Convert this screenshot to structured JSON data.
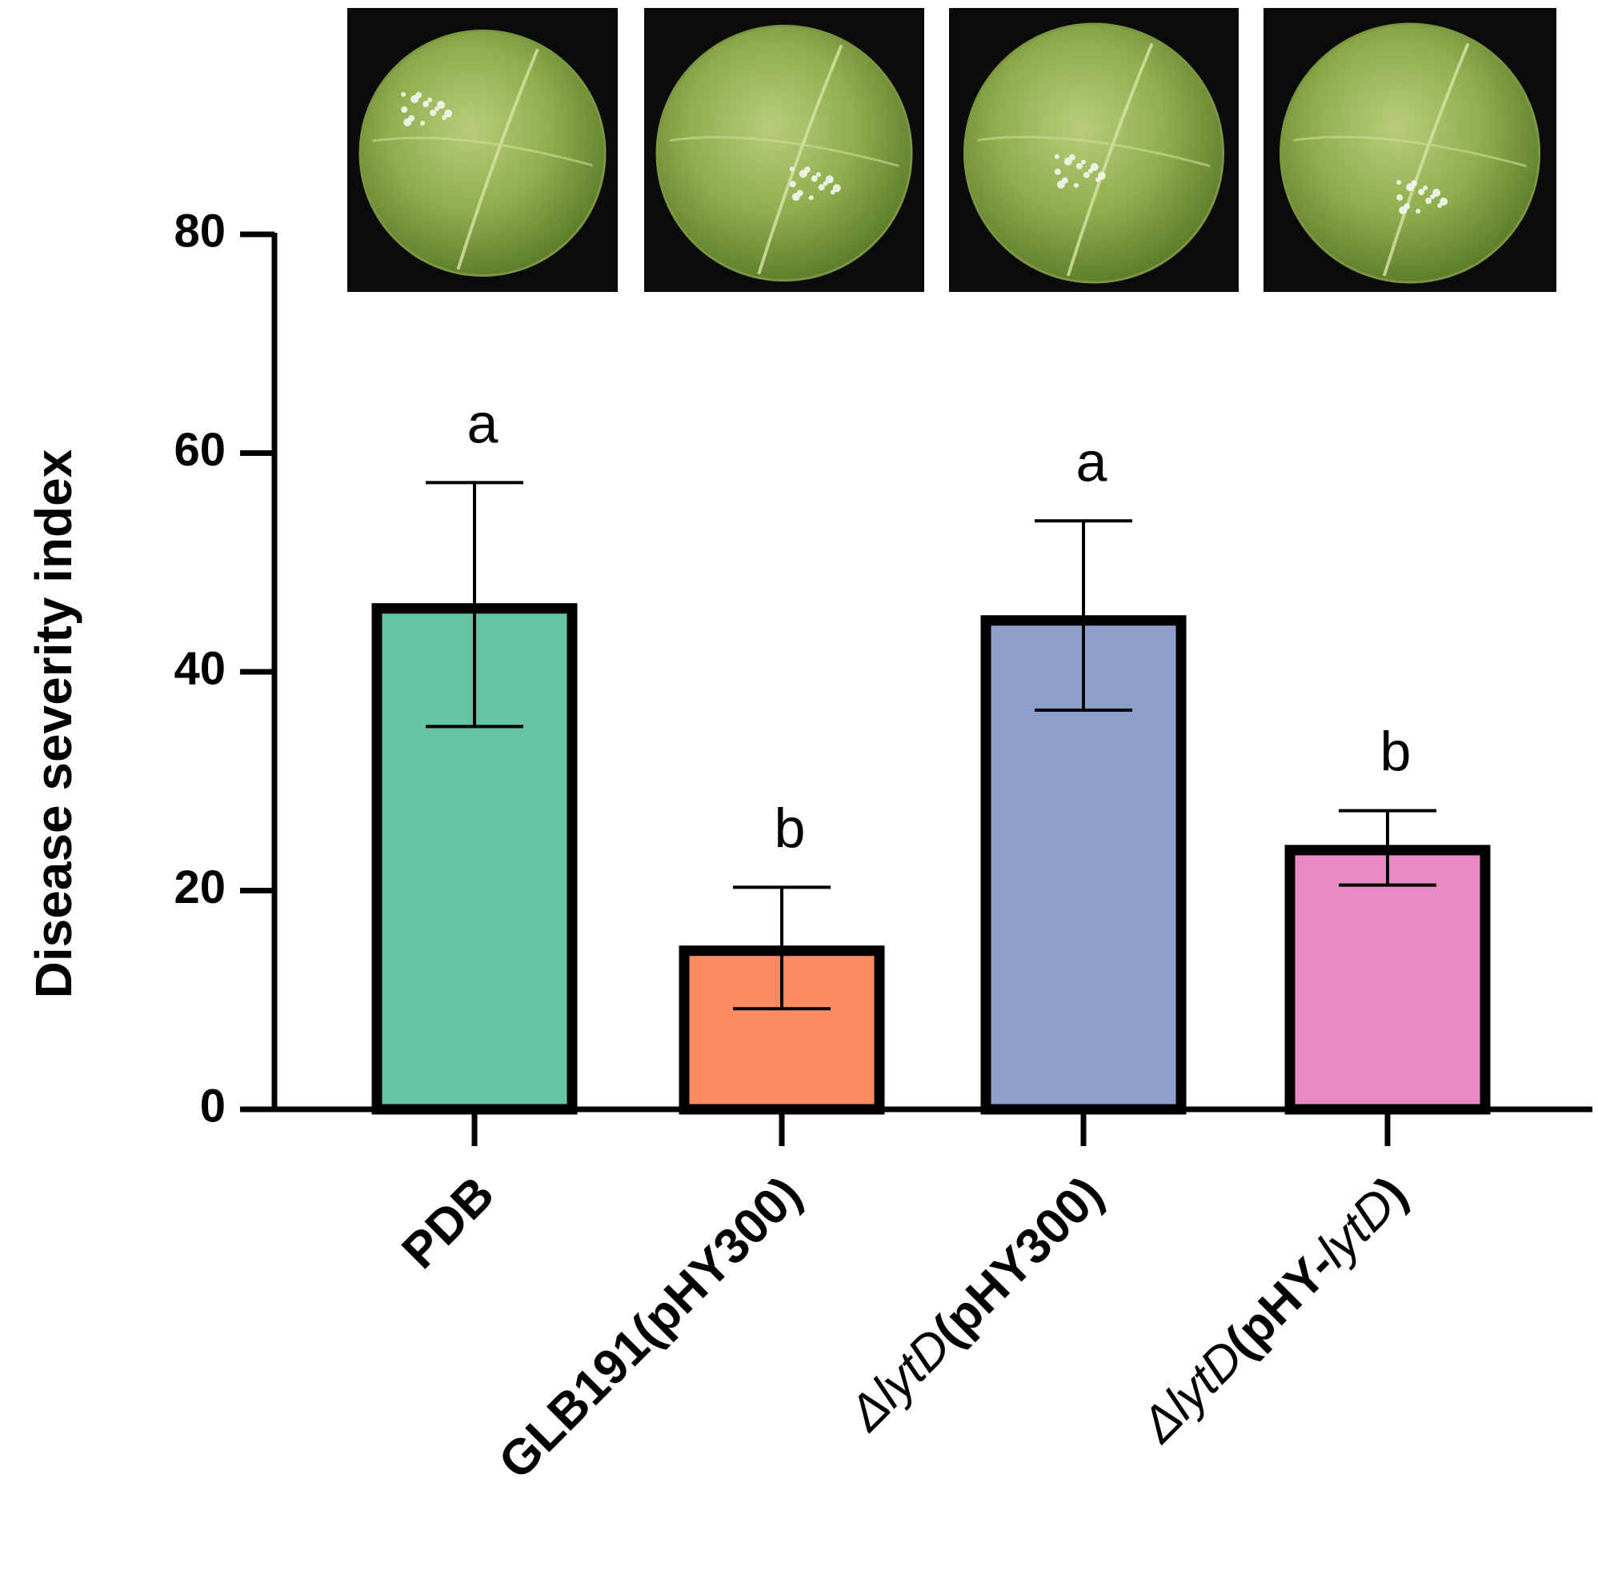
{
  "chart_data": {
    "type": "bar",
    "title": "",
    "xlabel": "",
    "ylabel": "Disease severity index",
    "ylim": [
      0,
      80
    ],
    "yticks": [
      0,
      20,
      40,
      60,
      80
    ],
    "grid": false,
    "categories": [
      {
        "parts": [
          {
            "text": "PDB",
            "style": "bold"
          }
        ]
      },
      {
        "parts": [
          {
            "text": "GLB191(pHY300)",
            "style": "bold"
          }
        ]
      },
      {
        "parts": [
          {
            "text": "Δ",
            "style": "italic"
          },
          {
            "text": "lytD",
            "style": "italic"
          },
          {
            "text": "(pHY300)",
            "style": "bold"
          }
        ]
      },
      {
        "parts": [
          {
            "text": "Δ",
            "style": "italic"
          },
          {
            "text": "lytD",
            "style": "italic"
          },
          {
            "text": "(pHY-",
            "style": "bold"
          },
          {
            "text": "lytD",
            "style": "italic"
          },
          {
            "text": ")",
            "style": "bold"
          }
        ]
      }
    ],
    "values": [
      45.8,
      14.5,
      44.7,
      23.7
    ],
    "error_low": [
      35.0,
      9.2,
      36.5,
      20.5
    ],
    "error_high": [
      57.3,
      20.3,
      53.8,
      27.3
    ],
    "significance": [
      "a",
      "b",
      "a",
      "b"
    ],
    "colors": [
      "#66c2a5",
      "#fc8d62",
      "#8da0cb",
      "#e78ac3"
    ],
    "inset_images": [
      "leaf-disc-pdb",
      "leaf-disc-glb191",
      "leaf-disc-lytd-pHY300",
      "leaf-disc-lytd-complemented"
    ]
  }
}
